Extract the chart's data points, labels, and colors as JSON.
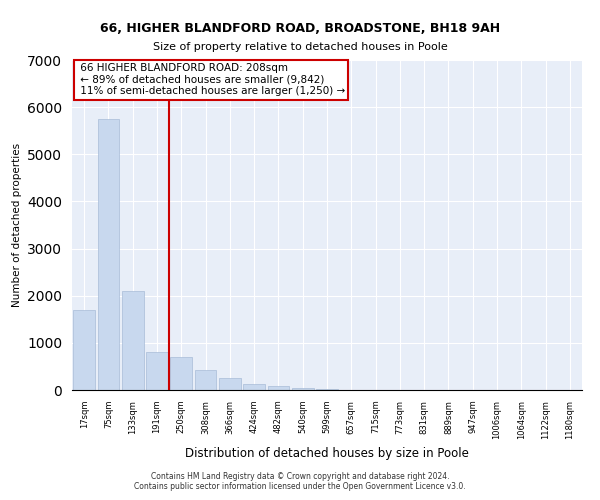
{
  "title1": "66, HIGHER BLANDFORD ROAD, BROADSTONE, BH18 9AH",
  "title2": "Size of property relative to detached houses in Poole",
  "xlabel": "Distribution of detached houses by size in Poole",
  "ylabel": "Number of detached properties",
  "annotation_line1": "66 HIGHER BLANDFORD ROAD: 208sqm",
  "annotation_line2": "← 89% of detached houses are smaller (9,842)",
  "annotation_line3": "11% of semi-detached houses are larger (1,250) →",
  "footnote1": "Contains HM Land Registry data © Crown copyright and database right 2024.",
  "footnote2": "Contains public sector information licensed under the Open Government Licence v3.0.",
  "bar_color": "#c8d8ee",
  "bar_edge_color": "#a8bcd8",
  "vline_color": "#cc0000",
  "vline_x": 3.5,
  "annotation_box_color": "#cc0000",
  "fig_bg_color": "#ffffff",
  "axes_bg_color": "#e8eef8",
  "grid_color": "#ffffff",
  "categories": [
    "17sqm",
    "75sqm",
    "133sqm",
    "191sqm",
    "250sqm",
    "308sqm",
    "366sqm",
    "424sqm",
    "482sqm",
    "540sqm",
    "599sqm",
    "657sqm",
    "715sqm",
    "773sqm",
    "831sqm",
    "889sqm",
    "947sqm",
    "1006sqm",
    "1064sqm",
    "1122sqm",
    "1180sqm"
  ],
  "values": [
    1700,
    5750,
    2100,
    800,
    700,
    420,
    260,
    130,
    80,
    50,
    15,
    5,
    2,
    0,
    0,
    0,
    0,
    0,
    0,
    0,
    0
  ],
  "ylim": [
    0,
    7000
  ],
  "yticks": [
    0,
    1000,
    2000,
    3000,
    4000,
    5000,
    6000,
    7000
  ]
}
